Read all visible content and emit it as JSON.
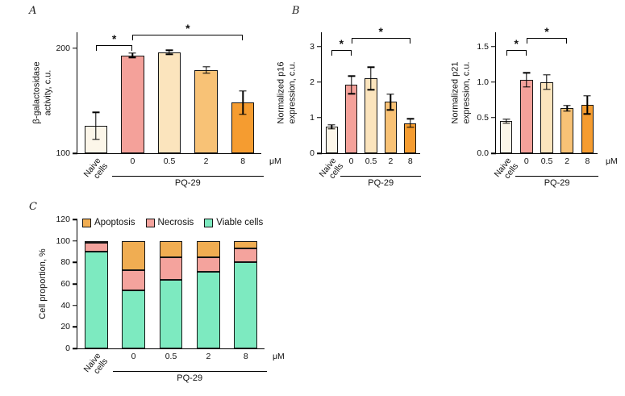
{
  "figure": {
    "panels": {
      "a": "A",
      "b": "B",
      "c": "C"
    }
  },
  "chart_data": [
    {
      "id": "beta_gal",
      "panel": "A",
      "type": "bar",
      "ylabel": "β-galactosidase\nactivity, c.u.",
      "categories": [
        "Naive cells",
        "0",
        "0.5",
        "2",
        "8"
      ],
      "values": [
        126,
        193,
        196,
        179,
        148
      ],
      "errors": [
        13,
        2,
        2,
        3,
        11
      ],
      "bar_colors": [
        "#FCF6E9",
        "#F4A19A",
        "#FBE4BD",
        "#F8C276",
        "#F59C30"
      ],
      "ylim": [
        100,
        215
      ],
      "yticks": [
        "100",
        "200"
      ],
      "x_unit": "μM",
      "group": {
        "label": "PQ-29",
        "from": 1,
        "to": 4
      },
      "significance": [
        {
          "from": 0,
          "to": 1,
          "label": "*",
          "y": 203
        },
        {
          "from": 1,
          "to": 4,
          "label": "*",
          "y": 212.5
        }
      ]
    },
    {
      "id": "p16",
      "panel": "B",
      "type": "bar",
      "ylabel": "Normalized p16\nexpression, c.u.",
      "categories": [
        "Naive cells",
        "0",
        "0.5",
        "2",
        "8"
      ],
      "values": [
        0.74,
        1.92,
        2.1,
        1.44,
        0.85
      ],
      "errors": [
        0.06,
        0.25,
        0.32,
        0.22,
        0.12
      ],
      "bar_colors": [
        "#FCF6E9",
        "#F4A19A",
        "#FBE4BD",
        "#F8C276",
        "#F59C30"
      ],
      "ylim": [
        0,
        3.4
      ],
      "yticks": [
        "0",
        "1",
        "2",
        "3"
      ],
      "group": {
        "label": "PQ-29",
        "from": 1,
        "to": 4
      },
      "significance": [
        {
          "from": 0,
          "to": 1,
          "label": "*",
          "y": 2.9
        },
        {
          "from": 1,
          "to": 4,
          "label": "*",
          "y": 3.25
        }
      ]
    },
    {
      "id": "p21",
      "panel": "B",
      "type": "bar",
      "ylabel": "Normalized p21\nexpression, c.u.",
      "categories": [
        "Naive cells",
        "0",
        "0.5",
        "2",
        "8"
      ],
      "values": [
        0.45,
        1.03,
        1.0,
        0.63,
        0.68
      ],
      "errors": [
        0.03,
        0.1,
        0.1,
        0.04,
        0.13
      ],
      "bar_colors": [
        "#FCF6E9",
        "#F4A19A",
        "#FBE4BD",
        "#F8C276",
        "#F59C30"
      ],
      "ylim": [
        0,
        1.7
      ],
      "yticks": [
        "0.0",
        "0.5",
        "1.0",
        "1.5"
      ],
      "x_unit": "μM",
      "group": {
        "label": "PQ-29",
        "from": 1,
        "to": 4
      },
      "significance": [
        {
          "from": 0,
          "to": 1,
          "label": "*",
          "y": 1.45
        },
        {
          "from": 1,
          "to": 3,
          "label": "*",
          "y": 1.62
        }
      ]
    },
    {
      "id": "cell_proportion",
      "panel": "C",
      "type": "stacked_bar",
      "ylabel": "Cell proportion, %",
      "categories": [
        "Naive cells",
        "0",
        "0.5",
        "2",
        "8"
      ],
      "series": [
        {
          "name": "Viable cells",
          "color": "#7DEAC0",
          "values": [
            90,
            54,
            64,
            71,
            80
          ]
        },
        {
          "name": "Necrosis",
          "color": "#F4A39D",
          "values": [
            8,
            19,
            21,
            14,
            13
          ]
        },
        {
          "name": "Apoptosis",
          "color": "#F0AD52",
          "values": [
            2,
            27,
            15,
            15,
            7
          ]
        }
      ],
      "legend": [
        "Apoptosis",
        "Necrosis",
        "Viable cells"
      ],
      "ylim": [
        0,
        120
      ],
      "yticks": [
        "0",
        "20",
        "40",
        "60",
        "80",
        "100",
        "120"
      ],
      "x_unit": "μM",
      "group": {
        "label": "PQ-29",
        "from": 1,
        "to": 4
      }
    }
  ]
}
